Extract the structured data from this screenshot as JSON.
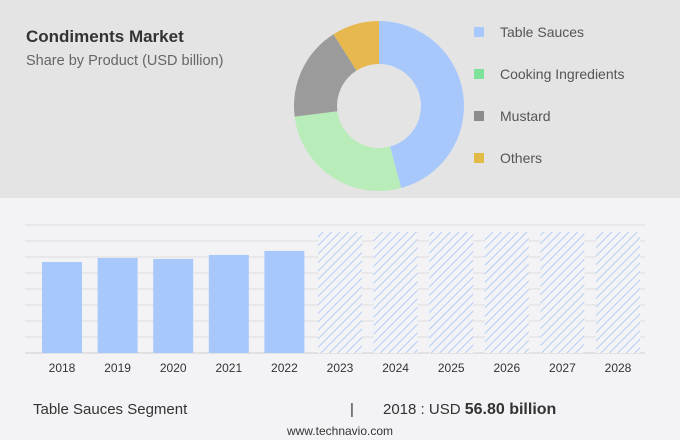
{
  "header": {
    "title": "Condiments Market",
    "subtitle": "Share by Product (USD billion)"
  },
  "chart_data": [
    {
      "type": "pie",
      "donut": true,
      "categories": [
        "Table Sauces",
        "Cooking Ingredients",
        "Mustard",
        "Others"
      ],
      "values": [
        45.8,
        27.2,
        18,
        9
      ],
      "colors": [
        "#a8c8fc",
        "#b8ecb8",
        "#9b9b9b",
        "#e6b84e"
      ],
      "legend_colors": [
        "#a8c8fc",
        "#7ee29b",
        "#8c8c8c",
        "#e2bb45"
      ],
      "legend_position": "right"
    },
    {
      "type": "bar",
      "categories": [
        "2018",
        "2019",
        "2020",
        "2021",
        "2022",
        "2023",
        "2024",
        "2025",
        "2026",
        "2027",
        "2028"
      ],
      "values": [
        56.8,
        59.3,
        58.7,
        61.2,
        63.7,
        null,
        null,
        null,
        null,
        null,
        null
      ],
      "forecast": [
        "2023",
        "2024",
        "2025",
        "2026",
        "2027",
        "2028"
      ],
      "bar_color": "#a8c8fc",
      "grid": true
    }
  ],
  "footer": {
    "segment": "Table Sauces Segment",
    "separator": "|",
    "year_label": "2018 : USD",
    "value": "56.80 billion",
    "url": "www.technavio.com"
  }
}
